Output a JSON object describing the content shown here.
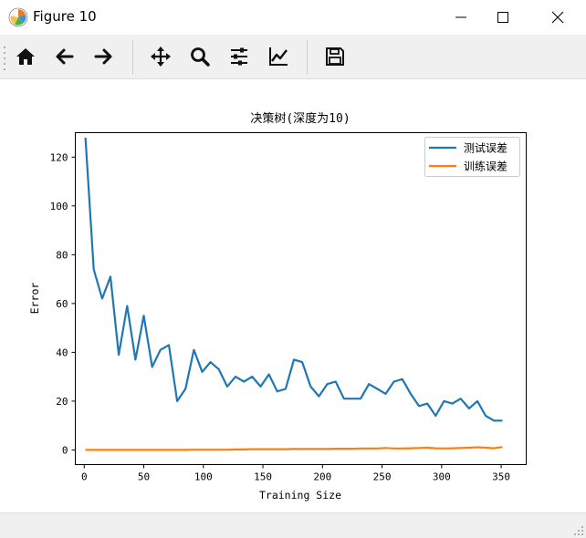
{
  "window": {
    "title": "Figure 10",
    "icon": "matplotlib-logo-icon",
    "controls": [
      "minimize-icon",
      "maximize-icon",
      "close-icon"
    ]
  },
  "toolbar": {
    "tools": [
      "home-icon",
      "back-arrow-icon",
      "forward-arrow-icon",
      "pan-move-icon",
      "zoom-magnifier-icon",
      "configure-subplots-icon",
      "edit-axis-icon",
      "save-disk-icon"
    ]
  },
  "colors": {
    "test_series": "#1f77b4",
    "train_series": "#ff7f0e"
  },
  "chart_data": {
    "type": "line",
    "title": "决策树(深度为10)",
    "xlabel": "Training Size",
    "ylabel": "Error",
    "xlim": [
      -7.5,
      371
    ],
    "ylim": [
      -6,
      130
    ],
    "xticks": [
      0,
      50,
      100,
      150,
      200,
      250,
      300,
      350
    ],
    "yticks": [
      0,
      20,
      40,
      60,
      80,
      100,
      120
    ],
    "grid": false,
    "legend_position": "upper right",
    "series": [
      {
        "name": "测试误差",
        "color": "#1f77b4",
        "x": [
          1,
          8,
          15,
          22,
          29,
          36,
          43,
          50,
          57,
          64,
          71,
          78,
          85,
          92,
          99,
          106,
          113,
          120,
          127,
          134,
          141,
          148,
          155,
          162,
          169,
          176,
          183,
          190,
          197,
          204,
          211,
          218,
          225,
          232,
          239,
          246,
          253,
          260,
          267,
          274,
          281,
          288,
          295,
          302,
          309,
          316,
          323,
          330,
          337,
          344,
          351
        ],
        "values": [
          128,
          74,
          62,
          71,
          39,
          59,
          37,
          55,
          34,
          41,
          43,
          20,
          25,
          41,
          32,
          36,
          33,
          26,
          30,
          28,
          30,
          26,
          31,
          24,
          25,
          37,
          36,
          26,
          22,
          27,
          28,
          21,
          21,
          21,
          27,
          25,
          23,
          28,
          29,
          23,
          18,
          19,
          14,
          20,
          19,
          21,
          17,
          20,
          14,
          12,
          12
        ]
      },
      {
        "name": "训练误差",
        "color": "#ff7f0e",
        "x": [
          1,
          8,
          15,
          22,
          29,
          36,
          43,
          50,
          57,
          64,
          71,
          78,
          85,
          92,
          99,
          106,
          113,
          120,
          127,
          134,
          141,
          148,
          155,
          162,
          169,
          176,
          183,
          190,
          197,
          204,
          211,
          218,
          225,
          232,
          239,
          246,
          253,
          260,
          267,
          274,
          281,
          288,
          295,
          302,
          309,
          316,
          323,
          330,
          337,
          344,
          351
        ],
        "values": [
          0,
          0,
          0,
          0,
          0,
          0,
          0,
          0,
          0,
          0,
          0,
          0,
          0,
          0.1,
          0.1,
          0.1,
          0.1,
          0.1,
          0.2,
          0.2,
          0.3,
          0.3,
          0.3,
          0.3,
          0.3,
          0.4,
          0.4,
          0.4,
          0.4,
          0.4,
          0.5,
          0.5,
          0.5,
          0.6,
          0.6,
          0.6,
          0.8,
          0.6,
          0.6,
          0.7,
          0.8,
          0.9,
          0.7,
          0.6,
          0.7,
          0.8,
          0.9,
          1.1,
          0.9,
          0.7,
          1.2
        ]
      }
    ]
  }
}
